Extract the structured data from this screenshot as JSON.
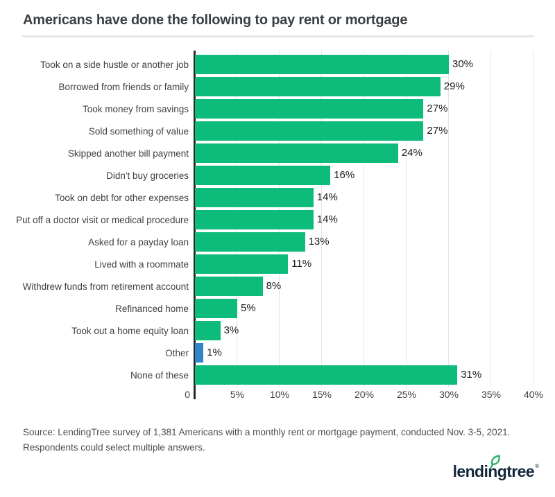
{
  "title": "Americans have done the following to pay rent or mortgage",
  "chart_data": {
    "type": "bar",
    "orientation": "horizontal",
    "title": "Americans have done the following to pay rent or mortgage",
    "xlabel": "",
    "ylabel": "",
    "xlim": [
      0,
      41
    ],
    "unit": "percent",
    "grid": "vertical lines every 5%",
    "legend": "none",
    "colors": {
      "bar_green": "#0dbc7b",
      "bar_blue": "#2e86c4",
      "axis": "#272727",
      "gridline": "#e4e4e4"
    },
    "x_ticks": [
      {
        "label": "0",
        "value": 0
      },
      {
        "label": "5%",
        "value": 5
      },
      {
        "label": "10%",
        "value": 10
      },
      {
        "label": "15%",
        "value": 15
      },
      {
        "label": "20%",
        "value": 20
      },
      {
        "label": "25%",
        "value": 25
      },
      {
        "label": "30%",
        "value": 30
      },
      {
        "label": "35%",
        "value": 35
      },
      {
        "label": "40%",
        "value": 40
      }
    ],
    "rows": [
      {
        "label": "Took on a side hustle or another job",
        "value": 30,
        "display": "30%",
        "color": "#0dbc7b"
      },
      {
        "label": "Borrowed from friends or family",
        "value": 29,
        "display": "29%",
        "color": "#0dbc7b"
      },
      {
        "label": "Took money from savings",
        "value": 27,
        "display": "27%",
        "color": "#0dbc7b"
      },
      {
        "label": "Sold something of value",
        "value": 27,
        "display": "27%",
        "color": "#0dbc7b"
      },
      {
        "label": "Skipped another bill payment",
        "value": 24,
        "display": "24%",
        "color": "#0dbc7b"
      },
      {
        "label": "Didn't buy groceries",
        "value": 16,
        "display": "16%",
        "color": "#0dbc7b"
      },
      {
        "label": "Took on debt for other expenses",
        "value": 14,
        "display": "14%",
        "color": "#0dbc7b"
      },
      {
        "label": "Put off a doctor visit or medical procedure",
        "value": 14,
        "display": "14%",
        "color": "#0dbc7b"
      },
      {
        "label": "Asked for a payday loan",
        "value": 13,
        "display": "13%",
        "color": "#0dbc7b"
      },
      {
        "label": "Lived with a roommate",
        "value": 11,
        "display": "11%",
        "color": "#0dbc7b"
      },
      {
        "label": "Withdrew funds from retirement account",
        "value": 8,
        "display": "8%",
        "color": "#0dbc7b"
      },
      {
        "label": "Refinanced home",
        "value": 5,
        "display": "5%",
        "color": "#0dbc7b"
      },
      {
        "label": "Took out a home equity loan",
        "value": 3,
        "display": "3%",
        "color": "#0dbc7b"
      },
      {
        "label": "Other",
        "value": 1,
        "display": "1%",
        "color": "#2e86c4"
      },
      {
        "label": "None of these",
        "value": 31,
        "display": "31%",
        "color": "#0dbc7b"
      }
    ]
  },
  "source": {
    "line1": "Source: LendingTree survey of 1,381 Americans with a monthly rent or mortgage payment, conducted Nov. 3-5, 2021.",
    "line2": "Respondents could select multiple answers."
  },
  "footer_logo": {
    "text": "lendingtree",
    "mark": "®",
    "leaf_color": "#2ab06a"
  }
}
